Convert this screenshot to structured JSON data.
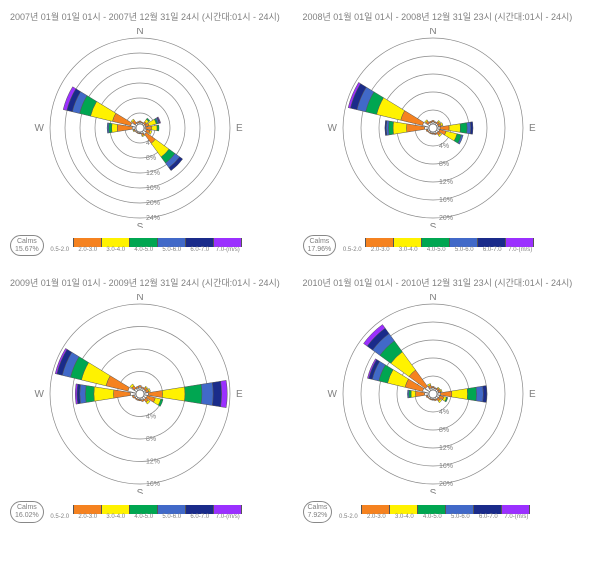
{
  "speed_bins": [
    {
      "label": "0.5-2.0",
      "color": "#ffffff"
    },
    {
      "label": "2.0-3.0",
      "color": "#f58220"
    },
    {
      "label": "3.0-4.0",
      "color": "#fff200"
    },
    {
      "label": "4.0-5.0",
      "color": "#00a651"
    },
    {
      "label": "5.0-6.0",
      "color": "#4169c8"
    },
    {
      "label": "6.0-7.0",
      "color": "#1a2b8a"
    },
    {
      "label": "7.0-(m/s)",
      "color": "#9b30ff"
    }
  ],
  "cardinals": [
    "N",
    "E",
    "S",
    "W"
  ],
  "ring_color": "#888888",
  "panels": [
    {
      "title": "2007년 01월 01일 01시 - 2007년 12월 31일 24시 (시간대:01시 - 24시)",
      "calms_label": "Calms",
      "calms_value": "15.67%",
      "ring_pcts": [
        4,
        8,
        12,
        16,
        20,
        24
      ],
      "max_pct": 24,
      "sectors": [
        {
          "dir": 0,
          "bins": [
            0.5,
            0.3,
            0,
            0,
            0,
            0,
            0
          ]
        },
        {
          "dir": 22.5,
          "bins": [
            0.4,
            0.2,
            0,
            0,
            0,
            0,
            0
          ]
        },
        {
          "dir": 45,
          "bins": [
            0.4,
            0.6,
            0.8,
            0.4,
            0,
            0,
            0
          ]
        },
        {
          "dir": 67.5,
          "bins": [
            0.5,
            0.9,
            2.0,
            0.4,
            0.4,
            0.2,
            0.2
          ]
        },
        {
          "dir": 90,
          "bins": [
            0.5,
            1.5,
            1.5,
            0.5,
            0,
            0,
            0
          ]
        },
        {
          "dir": 112.5,
          "bins": [
            0.7,
            1.0,
            0.5,
            0,
            0,
            0,
            0
          ]
        },
        {
          "dir": 135,
          "bins": [
            1.0,
            3.0,
            4.5,
            2.0,
            1.5,
            1.0,
            0
          ]
        },
        {
          "dir": 157.5,
          "bins": [
            0.5,
            0.5,
            0.3,
            0,
            0,
            0,
            0
          ]
        },
        {
          "dir": 180,
          "bins": [
            0.3,
            0.2,
            0,
            0,
            0,
            0,
            0
          ]
        },
        {
          "dir": 202.5,
          "bins": [
            0.3,
            0.2,
            0,
            0,
            0,
            0,
            0
          ]
        },
        {
          "dir": 225,
          "bins": [
            0.3,
            0.2,
            0,
            0,
            0,
            0,
            0
          ]
        },
        {
          "dir": 247.5,
          "bins": [
            0.4,
            0.3,
            0.2,
            0,
            0,
            0,
            0
          ]
        },
        {
          "dir": 270,
          "bins": [
            1.0,
            4.0,
            1.5,
            0.8,
            0.4,
            0,
            0
          ]
        },
        {
          "dir": 292.5,
          "bins": [
            1.5,
            5.0,
            6.0,
            3.0,
            2.0,
            1.5,
            1.0
          ]
        },
        {
          "dir": 315,
          "bins": [
            0.5,
            1.0,
            0.4,
            0,
            0,
            0,
            0
          ]
        },
        {
          "dir": 337.5,
          "bins": [
            0.4,
            0.3,
            0,
            0,
            0,
            0,
            0
          ]
        }
      ]
    },
    {
      "title": "2008년 01월 01일 01시 - 2008년 12월 31일 23시 (시간대:01시 - 24시)",
      "calms_label": "Calms",
      "calms_value": "17.96%",
      "ring_pcts": [
        4,
        8,
        12,
        16,
        20
      ],
      "max_pct": 20,
      "sectors": [
        {
          "dir": 0,
          "bins": [
            0.5,
            0.3,
            0,
            0,
            0,
            0,
            0
          ]
        },
        {
          "dir": 22.5,
          "bins": [
            0.4,
            0.2,
            0,
            0,
            0,
            0,
            0
          ]
        },
        {
          "dir": 45,
          "bins": [
            0.4,
            0.5,
            0.3,
            0,
            0,
            0,
            0
          ]
        },
        {
          "dir": 67.5,
          "bins": [
            0.4,
            0.6,
            0.4,
            0,
            0,
            0,
            0
          ]
        },
        {
          "dir": 90,
          "bins": [
            0.7,
            2.0,
            2.5,
            1.5,
            0.8,
            0.5,
            0
          ]
        },
        {
          "dir": 112.5,
          "bins": [
            0.6,
            1.5,
            2.5,
            1.0,
            0.4,
            0,
            0
          ]
        },
        {
          "dir": 135,
          "bins": [
            0.5,
            0.6,
            0.4,
            0,
            0,
            0,
            0
          ]
        },
        {
          "dir": 157.5,
          "bins": [
            0.4,
            0.3,
            0,
            0,
            0,
            0,
            0
          ]
        },
        {
          "dir": 180,
          "bins": [
            0.3,
            0.2,
            0,
            0,
            0,
            0,
            0
          ]
        },
        {
          "dir": 202.5,
          "bins": [
            0.3,
            0.2,
            0,
            0,
            0,
            0,
            0
          ]
        },
        {
          "dir": 225,
          "bins": [
            0.3,
            0.2,
            0,
            0,
            0,
            0,
            0
          ]
        },
        {
          "dir": 247.5,
          "bins": [
            0.4,
            0.3,
            0,
            0,
            0,
            0,
            0
          ]
        },
        {
          "dir": 270,
          "bins": [
            1.0,
            4.0,
            3.0,
            1.0,
            0.5,
            0.3,
            0
          ]
        },
        {
          "dir": 292.5,
          "bins": [
            1.5,
            5.0,
            5.5,
            2.5,
            2.0,
            1.5,
            0.5
          ]
        },
        {
          "dir": 315,
          "bins": [
            0.5,
            0.6,
            0.3,
            0,
            0,
            0,
            0
          ]
        },
        {
          "dir": 337.5,
          "bins": [
            0.4,
            0.3,
            0,
            0,
            0,
            0,
            0
          ]
        }
      ]
    },
    {
      "title": "2009년 01월 01일 01시 - 2009년 12월 31일 24시 (시간대:01시 - 24시)",
      "calms_label": "Calms",
      "calms_value": "16.02%",
      "ring_pcts": [
        4,
        8,
        12,
        16
      ],
      "max_pct": 16,
      "sectors": [
        {
          "dir": 0,
          "bins": [
            0.5,
            0.3,
            0,
            0,
            0,
            0,
            0
          ]
        },
        {
          "dir": 22.5,
          "bins": [
            0.4,
            0.2,
            0,
            0,
            0,
            0,
            0
          ]
        },
        {
          "dir": 45,
          "bins": [
            0.4,
            0.4,
            0.2,
            0,
            0,
            0,
            0
          ]
        },
        {
          "dir": 67.5,
          "bins": [
            0.4,
            0.5,
            0.3,
            0,
            0,
            0,
            0
          ]
        },
        {
          "dir": 90,
          "bins": [
            0.8,
            2.5,
            4.0,
            3.0,
            2.0,
            1.5,
            1.0
          ]
        },
        {
          "dir": 112.5,
          "bins": [
            0.6,
            1.5,
            1.0,
            0.4,
            0,
            0,
            0
          ]
        },
        {
          "dir": 135,
          "bins": [
            0.5,
            0.6,
            0.4,
            0,
            0,
            0,
            0
          ]
        },
        {
          "dir": 157.5,
          "bins": [
            0.4,
            0.3,
            0,
            0,
            0,
            0,
            0
          ]
        },
        {
          "dir": 180,
          "bins": [
            0.3,
            0.2,
            0,
            0,
            0,
            0,
            0
          ]
        },
        {
          "dir": 202.5,
          "bins": [
            0.3,
            0.2,
            0,
            0,
            0,
            0,
            0
          ]
        },
        {
          "dir": 225,
          "bins": [
            0.3,
            0.2,
            0,
            0,
            0,
            0,
            0
          ]
        },
        {
          "dir": 247.5,
          "bins": [
            0.4,
            0.3,
            0,
            0,
            0,
            0,
            0
          ]
        },
        {
          "dir": 270,
          "bins": [
            1.0,
            3.0,
            3.5,
            1.5,
            1.0,
            0.5,
            0.3
          ]
        },
        {
          "dir": 292.5,
          "bins": [
            1.5,
            4.0,
            4.5,
            2.0,
            1.5,
            1.0,
            0.3
          ]
        },
        {
          "dir": 315,
          "bins": [
            0.5,
            0.6,
            0.4,
            0,
            0,
            0,
            0
          ]
        },
        {
          "dir": 337.5,
          "bins": [
            0.4,
            0.3,
            0,
            0,
            0,
            0,
            0
          ]
        }
      ]
    },
    {
      "title": "2010년 01월 01일 01시 - 2010년 12월 31일 23시 (시간대:01시 - 24시)",
      "calms_label": "Calms",
      "calms_value": "7.92%",
      "ring_pcts": [
        4,
        8,
        12,
        16,
        20
      ],
      "max_pct": 20,
      "sectors": [
        {
          "dir": 0,
          "bins": [
            0.5,
            0.3,
            0,
            0,
            0,
            0,
            0
          ]
        },
        {
          "dir": 22.5,
          "bins": [
            0.4,
            0.2,
            0,
            0,
            0,
            0,
            0
          ]
        },
        {
          "dir": 45,
          "bins": [
            0.4,
            0.4,
            0.2,
            0,
            0,
            0,
            0
          ]
        },
        {
          "dir": 67.5,
          "bins": [
            0.4,
            0.5,
            0.3,
            0,
            0,
            0,
            0
          ]
        },
        {
          "dir": 90,
          "bins": [
            0.8,
            2.5,
            3.5,
            2.0,
            1.5,
            0.8,
            0
          ]
        },
        {
          "dir": 112.5,
          "bins": [
            0.6,
            1.0,
            0.6,
            0.3,
            0,
            0,
            0
          ]
        },
        {
          "dir": 135,
          "bins": [
            0.5,
            0.6,
            0.4,
            0,
            0,
            0,
            0
          ]
        },
        {
          "dir": 157.5,
          "bins": [
            0.4,
            0.3,
            0,
            0,
            0,
            0,
            0
          ]
        },
        {
          "dir": 180,
          "bins": [
            0.3,
            0.2,
            0,
            0,
            0,
            0,
            0
          ]
        },
        {
          "dir": 202.5,
          "bins": [
            0.3,
            0.2,
            0,
            0,
            0,
            0,
            0
          ]
        },
        {
          "dir": 225,
          "bins": [
            0.3,
            0.2,
            0,
            0,
            0,
            0,
            0
          ]
        },
        {
          "dir": 247.5,
          "bins": [
            0.4,
            0.3,
            0,
            0,
            0,
            0,
            0
          ]
        },
        {
          "dir": 270,
          "bins": [
            1.0,
            2.0,
            1.0,
            0.5,
            0.3,
            0,
            0
          ]
        },
        {
          "dir": 292.5,
          "bins": [
            1.5,
            4.0,
            4.0,
            2.0,
            1.5,
            0.8,
            0.3
          ]
        },
        {
          "dir": 315,
          "bins": [
            1.2,
            4.5,
            5.0,
            3.0,
            2.0,
            1.5,
            1.0
          ]
        },
        {
          "dir": 337.5,
          "bins": [
            0.5,
            0.6,
            0.4,
            0,
            0,
            0,
            0
          ]
        }
      ]
    }
  ]
}
